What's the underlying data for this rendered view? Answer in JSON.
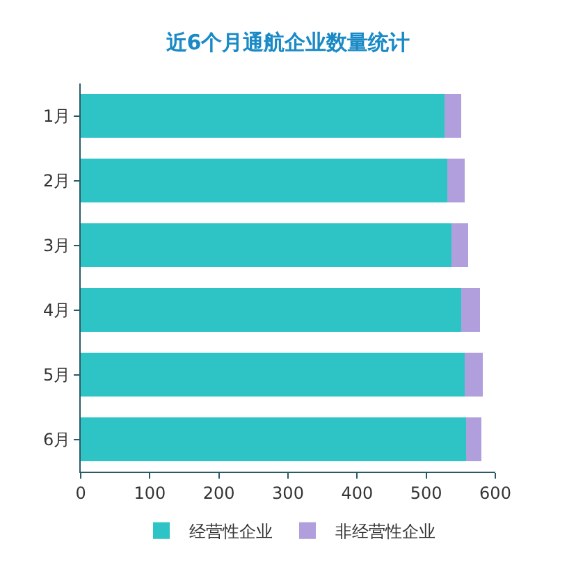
{
  "chart_data": {
    "type": "bar",
    "orientation": "horizontal",
    "stacked": true,
    "title": "近6个月通航企业数量统计",
    "categories": [
      "1月",
      "2月",
      "3月",
      "4月",
      "5月",
      "6月"
    ],
    "series": [
      {
        "name": "经营性企业",
        "color": "#2ec4c6",
        "values": [
          527,
          531,
          537,
          551,
          556,
          558
        ]
      },
      {
        "name": "非经营性企业",
        "color": "#b09fdc",
        "values": [
          24,
          25,
          24,
          27,
          26,
          22
        ]
      }
    ],
    "xlim": [
      0,
      600
    ],
    "xticks": [
      0,
      100,
      200,
      300,
      400,
      500,
      600
    ],
    "legend": "bottom"
  }
}
